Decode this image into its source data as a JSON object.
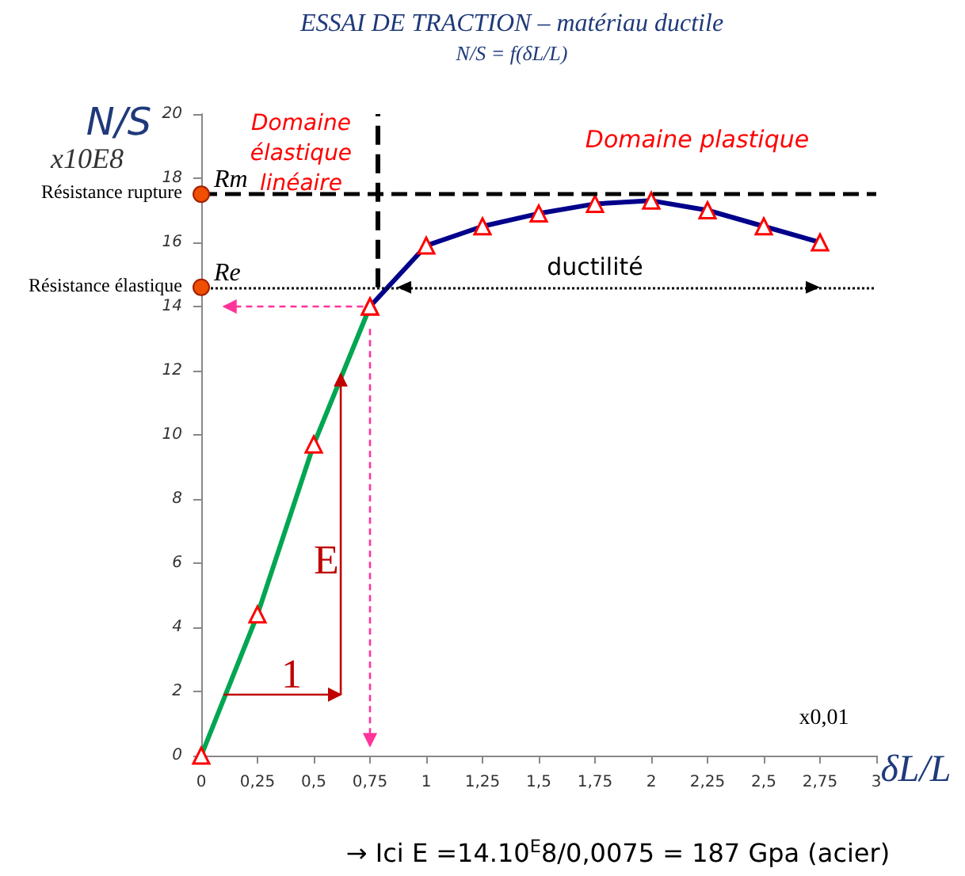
{
  "chart_data": {
    "type": "line",
    "title": "ESSAI DE TRACTION – matériau ductile",
    "subtitle": "N/S = f(δL/L)",
    "xlabel": "δL/L",
    "ylabel": "N/S",
    "series": [
      {
        "color": "#00a651",
        "x": [
          0,
          0.25,
          0.5,
          0.75
        ],
        "values": [
          0,
          4.4,
          9.7,
          14.0
        ]
      },
      {
        "color": "#00008b",
        "x": [
          0.75,
          1,
          1.25,
          1.5,
          1.75,
          2,
          2.25,
          2.5,
          2.75
        ],
        "values": [
          14.0,
          15.9,
          16.5,
          16.9,
          17.2,
          17.3,
          17.0,
          16.5,
          16.0
        ]
      }
    ],
    "xlim": [
      0,
      3
    ],
    "xticks": [
      0,
      {
        "value": 0.25,
        "label": "0,25"
      },
      {
        "value": 0.5,
        "label": "0,5"
      },
      {
        "value": 0.75,
        "label": "0,75"
      },
      1,
      {
        "value": 1.25,
        "label": "1,25"
      },
      {
        "value": 1.5,
        "label": "1,5"
      },
      {
        "value": 1.75,
        "label": "1,75"
      },
      2,
      {
        "value": 2.25,
        "label": "2,25"
      },
      {
        "value": 2.5,
        "label": "2,5"
      },
      {
        "value": 2.75,
        "label": "2,75"
      },
      3
    ],
    "ylim": [
      0,
      20
    ],
    "yticks": [
      0,
      2,
      4,
      6,
      8,
      10,
      12,
      14,
      16,
      18,
      20
    ],
    "grid": false,
    "marker": "triangle",
    "line_style": "solid",
    "ref_lines": [
      {
        "axis": "y",
        "value": 17.5,
        "label": "Rm",
        "color": "#000000",
        "line_style": "dashed"
      },
      {
        "axis": "y",
        "value": 14.6,
        "label": "Re",
        "color": "#000000",
        "line_style": "dotted"
      },
      {
        "axis": "x",
        "value": 0.78,
        "color": "#000000",
        "line_style": "dashed"
      }
    ],
    "annotations": [
      "Résistance rupture",
      "Résistance élastique",
      "Domaine élastique linéaire",
      "Domaine plastique",
      {
        "text": "ductilité",
        "x": 1.75,
        "y": 14.6
      },
      "E",
      "1",
      "x10E8",
      "x0,01",
      "→ Ici E =14.10$^{E}$8/0,0075 = 187 Gpa (acier)"
    ]
  }
}
